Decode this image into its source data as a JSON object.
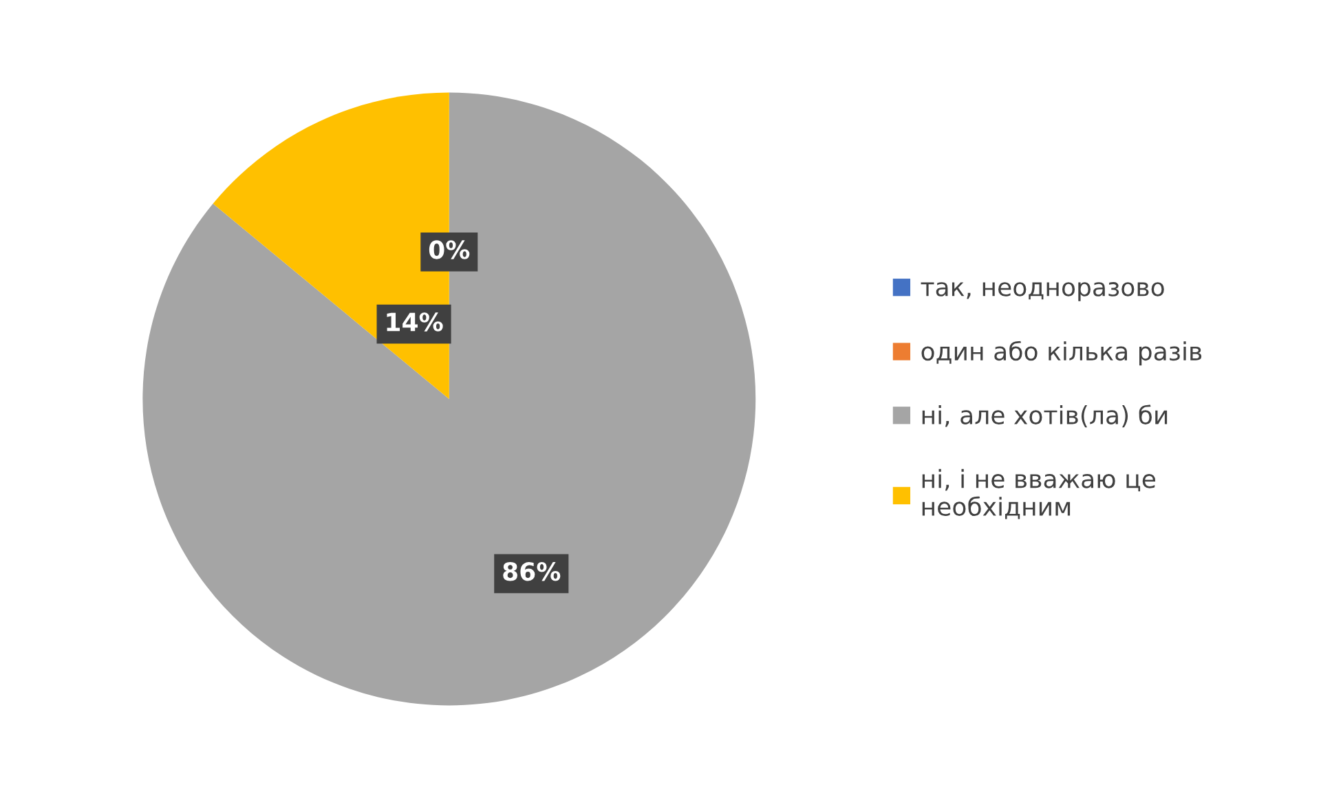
{
  "chart_data": {
    "type": "pie",
    "categories": [
      "так, неодноразово",
      "один або кілька разів",
      "ні, але хотів(ла) би",
      "ні, і не вважаю це\nнеобхідним"
    ],
    "values": [
      0,
      0,
      86,
      14
    ],
    "colors": [
      "#4472c4",
      "#ed7d31",
      "#a5a5a5",
      "#ffc000"
    ],
    "value_labels": [
      "0%",
      null,
      "86%",
      "14%"
    ],
    "legend": "right"
  }
}
